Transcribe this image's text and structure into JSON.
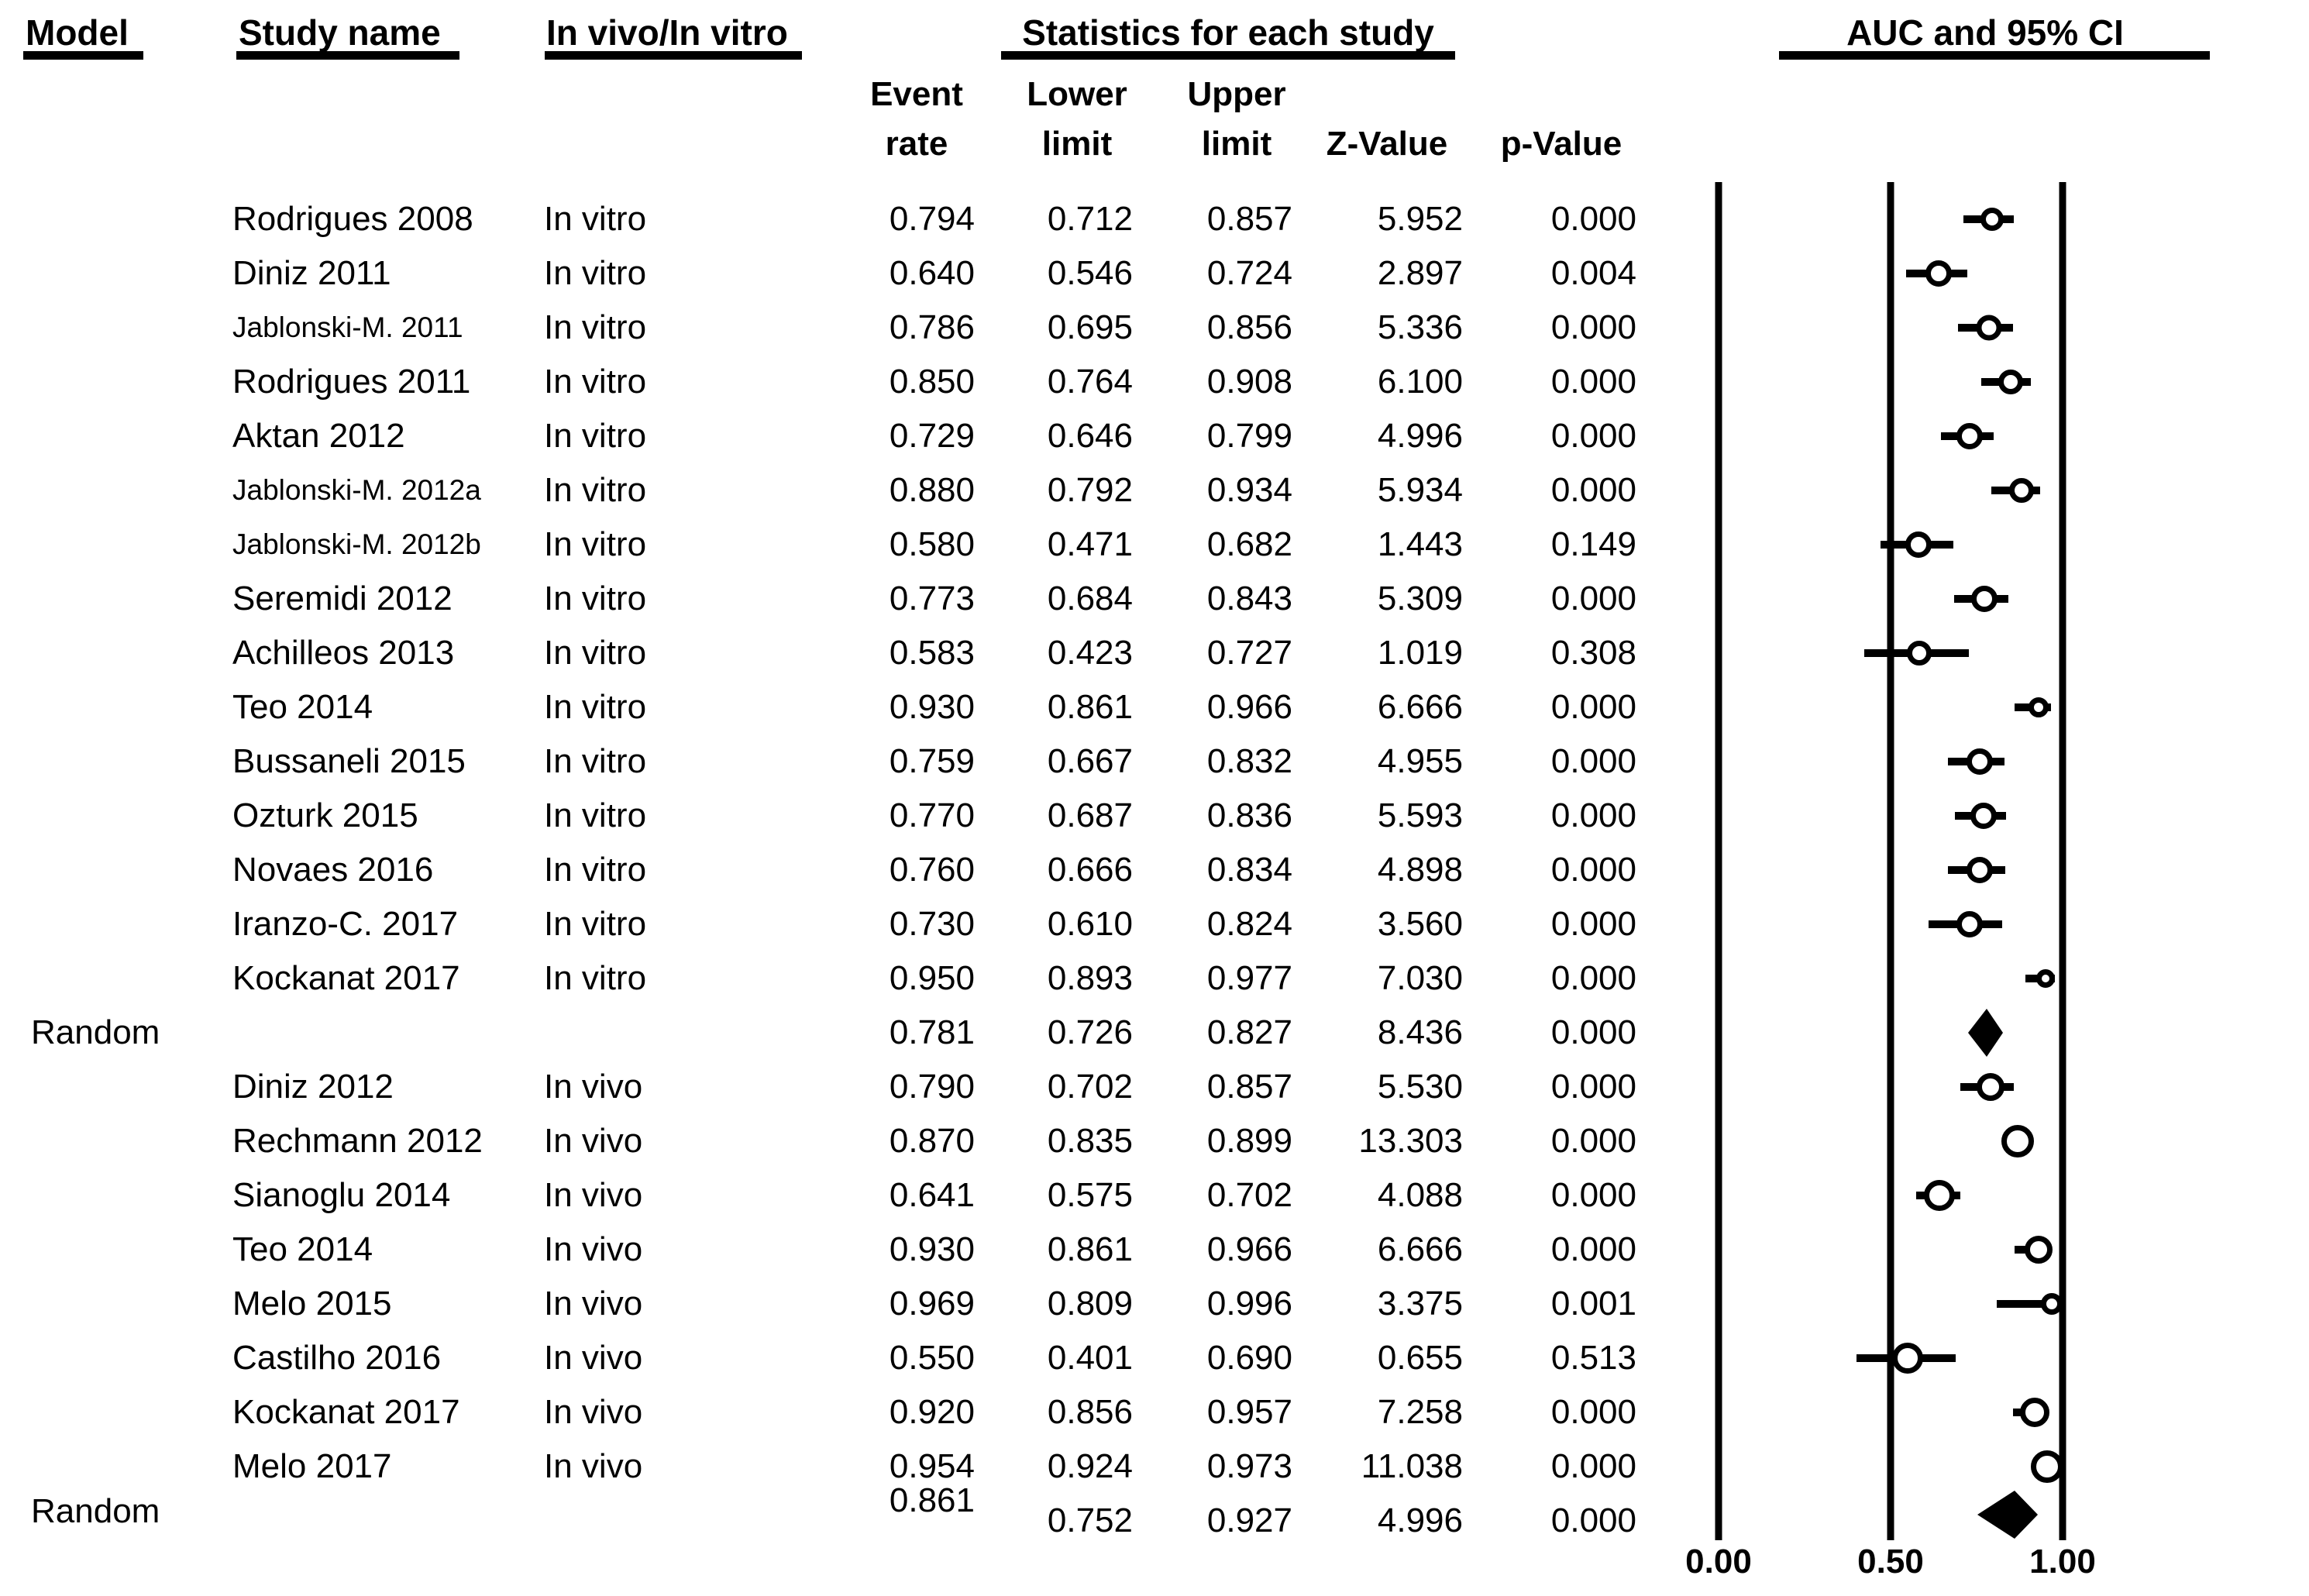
{
  "header": {
    "model": "Model",
    "study_name": "Study name",
    "group": "In vivo/In vitro",
    "statistics": "Statistics for each study",
    "plot_title": "AUC and 95% CI",
    "sub_event_1": "Event",
    "sub_event_2": "rate",
    "sub_lower_1": "Lower",
    "sub_lower_2": "limit",
    "sub_upper_1": "Upper",
    "sub_upper_2": "limit",
    "sub_z": "Z-Value",
    "sub_p": "p-Value"
  },
  "colors": {
    "foreground": "#000000",
    "background": "#ffffff"
  },
  "chart_data": {
    "type": "forest",
    "title": "AUC and 95% CI",
    "effect_label": "Event rate",
    "xlim": [
      0,
      1
    ],
    "tick_values": [
      0,
      0.5,
      1
    ],
    "tick_labels": [
      "0.00",
      "0.50",
      "1.00"
    ],
    "columns": [
      "Model",
      "Study name",
      "In vivo/In vitro",
      "Event rate",
      "Lower limit",
      "Upper limit",
      "Z-Value",
      "p-Value"
    ],
    "rows": [
      {
        "model": "",
        "study": "Rodrigues 2008",
        "group": "In vitro",
        "event_rate": 0.794,
        "lower": 0.712,
        "upper": 0.857,
        "z": 5.952,
        "p": 0.0,
        "marker": "circle",
        "msize": 30
      },
      {
        "model": "",
        "study": "Diniz 2011",
        "group": "In vitro",
        "event_rate": 0.64,
        "lower": 0.546,
        "upper": 0.724,
        "z": 2.897,
        "p": 0.004,
        "marker": "circle",
        "msize": 34
      },
      {
        "model": "",
        "study": "Jablonski-M. 2011",
        "group": "In vitro",
        "event_rate": 0.786,
        "lower": 0.695,
        "upper": 0.856,
        "z": 5.336,
        "p": 0.0,
        "marker": "circle",
        "msize": 33
      },
      {
        "model": "",
        "study": "Rodrigues 2011",
        "group": "In vitro",
        "event_rate": 0.85,
        "lower": 0.764,
        "upper": 0.908,
        "z": 6.1,
        "p": 0.0,
        "marker": "circle",
        "msize": 32
      },
      {
        "model": "",
        "study": "Aktan 2012",
        "group": "In vitro",
        "event_rate": 0.729,
        "lower": 0.646,
        "upper": 0.799,
        "z": 4.996,
        "p": 0.0,
        "marker": "circle",
        "msize": 34
      },
      {
        "model": "",
        "study": "Jablonski-M. 2012a",
        "group": "In vitro",
        "event_rate": 0.88,
        "lower": 0.792,
        "upper": 0.934,
        "z": 5.934,
        "p": 0.0,
        "marker": "circle",
        "msize": 32
      },
      {
        "model": "",
        "study": "Jablonski-M. 2012b",
        "group": "In vitro",
        "event_rate": 0.58,
        "lower": 0.471,
        "upper": 0.682,
        "z": 1.443,
        "p": 0.149,
        "marker": "circle",
        "msize": 34
      },
      {
        "model": "",
        "study": "Seremidi 2012",
        "group": "In vitro",
        "event_rate": 0.773,
        "lower": 0.684,
        "upper": 0.843,
        "z": 5.309,
        "p": 0.0,
        "marker": "circle",
        "msize": 34
      },
      {
        "model": "",
        "study": "Achilleos 2013",
        "group": "In vitro",
        "event_rate": 0.583,
        "lower": 0.423,
        "upper": 0.727,
        "z": 1.019,
        "p": 0.308,
        "marker": "circle",
        "msize": 32
      },
      {
        "model": "",
        "study": "Teo 2014",
        "group": "In vitro",
        "event_rate": 0.93,
        "lower": 0.861,
        "upper": 0.966,
        "z": 6.666,
        "p": 0.0,
        "marker": "circle",
        "msize": 26
      },
      {
        "model": "",
        "study": "Bussaneli 2015",
        "group": "In vitro",
        "event_rate": 0.759,
        "lower": 0.667,
        "upper": 0.832,
        "z": 4.955,
        "p": 0.0,
        "marker": "circle",
        "msize": 34
      },
      {
        "model": "",
        "study": "Ozturk 2015",
        "group": "In vitro",
        "event_rate": 0.77,
        "lower": 0.687,
        "upper": 0.836,
        "z": 5.593,
        "p": 0.0,
        "marker": "circle",
        "msize": 34
      },
      {
        "model": "",
        "study": "Novaes 2016",
        "group": "In vitro",
        "event_rate": 0.76,
        "lower": 0.666,
        "upper": 0.834,
        "z": 4.898,
        "p": 0.0,
        "marker": "circle",
        "msize": 34
      },
      {
        "model": "",
        "study": "Iranzo-C. 2017",
        "group": "In vitro",
        "event_rate": 0.73,
        "lower": 0.61,
        "upper": 0.824,
        "z": 3.56,
        "p": 0.0,
        "marker": "circle",
        "msize": 34
      },
      {
        "model": "",
        "study": "Kockanat 2017",
        "group": "In vitro",
        "event_rate": 0.95,
        "lower": 0.893,
        "upper": 0.977,
        "z": 7.03,
        "p": 0.0,
        "marker": "circle",
        "msize": 24
      },
      {
        "model": "Random",
        "study": "",
        "group": "",
        "event_rate": 0.781,
        "lower": 0.726,
        "upper": 0.827,
        "z": 8.436,
        "p": 0.0,
        "marker": "diamond",
        "msize": 62
      },
      {
        "model": "",
        "study": "Diniz 2012",
        "group": "In vivo",
        "event_rate": 0.79,
        "lower": 0.702,
        "upper": 0.857,
        "z": 5.53,
        "p": 0.0,
        "marker": "circle",
        "msize": 36
      },
      {
        "model": "",
        "study": "Rechmann 2012",
        "group": "In vivo",
        "event_rate": 0.87,
        "lower": 0.835,
        "upper": 0.899,
        "z": 13.303,
        "p": 0.0,
        "marker": "circle",
        "msize": 42
      },
      {
        "model": "",
        "study": "Sianoglu 2014",
        "group": "In vivo",
        "event_rate": 0.641,
        "lower": 0.575,
        "upper": 0.702,
        "z": 4.088,
        "p": 0.0,
        "marker": "circle",
        "msize": 40
      },
      {
        "model": "",
        "study": "Teo 2014",
        "group": "In vivo",
        "event_rate": 0.93,
        "lower": 0.861,
        "upper": 0.966,
        "z": 6.666,
        "p": 0.0,
        "marker": "circle",
        "msize": 36
      },
      {
        "model": "",
        "study": "Melo 2015",
        "group": "In vivo",
        "event_rate": 0.969,
        "lower": 0.809,
        "upper": 0.996,
        "z": 3.375,
        "p": 0.001,
        "marker": "circle",
        "msize": 28
      },
      {
        "model": "",
        "study": "Castilho 2016",
        "group": "In vivo",
        "event_rate": 0.55,
        "lower": 0.401,
        "upper": 0.69,
        "z": 0.655,
        "p": 0.513,
        "marker": "circle",
        "msize": 40
      },
      {
        "model": "",
        "study": "Kockanat 2017",
        "group": "In vivo",
        "event_rate": 0.92,
        "lower": 0.856,
        "upper": 0.957,
        "z": 7.258,
        "p": 0.0,
        "marker": "circle",
        "msize": 38
      },
      {
        "model": "",
        "study": "Melo 2017",
        "group": "In vivo",
        "event_rate": 0.954,
        "lower": 0.924,
        "upper": 0.973,
        "z": 11.038,
        "p": 0.0,
        "marker": "circle",
        "msize": 42
      },
      {
        "model": "Random",
        "study": "",
        "group": "",
        "event_rate": 0.861,
        "lower": 0.752,
        "upper": 0.927,
        "z": 4.996,
        "p": 0.0,
        "marker": "diamond",
        "msize": 62
      }
    ]
  }
}
